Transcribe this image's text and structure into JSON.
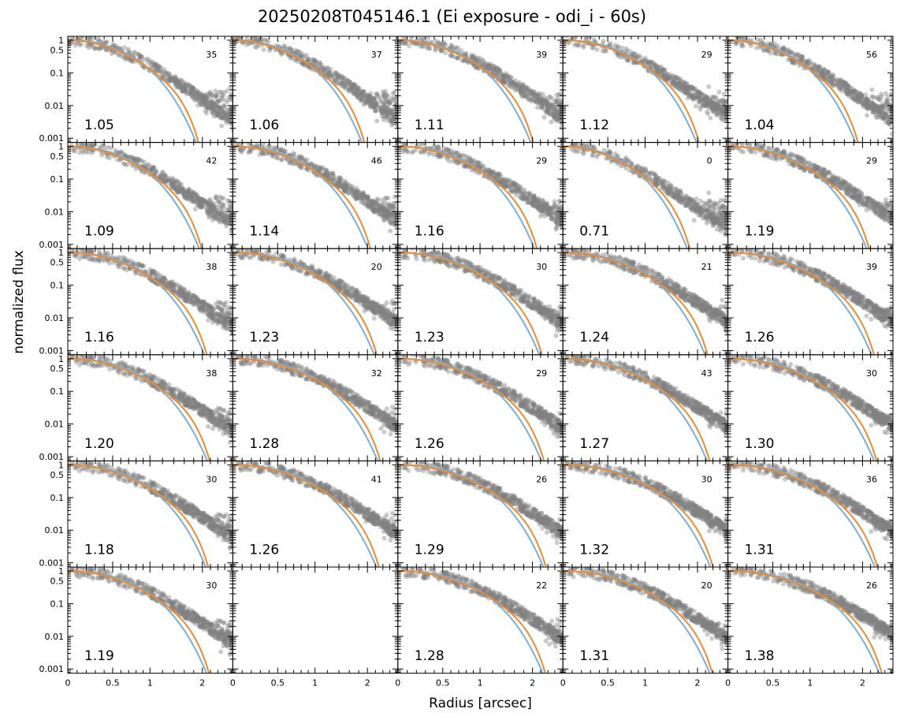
{
  "figure": {
    "title": "20250208T045146.1 (Ei exposure - odi_i - 60s)",
    "xlabel": "Radius [arcsec]",
    "ylabel": "normalized flux"
  },
  "chart_data": {
    "type": "scatter",
    "layout": {
      "rows": 6,
      "cols": 5
    },
    "x_scale": "asinh-like (labeled ticks 0, 0.5, 1, 2)",
    "y_scale": "log",
    "xticks": [
      "0",
      "0.5",
      "1",
      "2"
    ],
    "yticks": [
      "1",
      "0.5",
      "0.1",
      "0.01",
      "0.001"
    ],
    "colors": {
      "points": "#808080",
      "fit_blue": "#7aaed6",
      "fit_orange": "#ee8a2e"
    },
    "panels": [
      {
        "fwhm": "1.05",
        "count": "35",
        "empty": false
      },
      {
        "fwhm": "1.06",
        "count": "37",
        "empty": false
      },
      {
        "fwhm": "1.11",
        "count": "39",
        "empty": false
      },
      {
        "fwhm": "1.12",
        "count": "29",
        "empty": false
      },
      {
        "fwhm": "1.04",
        "count": "56",
        "empty": false
      },
      {
        "fwhm": "1.09",
        "count": "42",
        "empty": false
      },
      {
        "fwhm": "1.14",
        "count": "46",
        "empty": false
      },
      {
        "fwhm": "1.16",
        "count": "29",
        "empty": false
      },
      {
        "fwhm": "0.71",
        "count": "0",
        "empty": false
      },
      {
        "fwhm": "1.19",
        "count": "29",
        "empty": false
      },
      {
        "fwhm": "1.16",
        "count": "38",
        "empty": false
      },
      {
        "fwhm": "1.23",
        "count": "20",
        "empty": false
      },
      {
        "fwhm": "1.23",
        "count": "30",
        "empty": false
      },
      {
        "fwhm": "1.24",
        "count": "21",
        "empty": false
      },
      {
        "fwhm": "1.26",
        "count": "39",
        "empty": false
      },
      {
        "fwhm": "1.20",
        "count": "38",
        "empty": false
      },
      {
        "fwhm": "1.28",
        "count": "32",
        "empty": false
      },
      {
        "fwhm": "1.26",
        "count": "29",
        "empty": false
      },
      {
        "fwhm": "1.27",
        "count": "43",
        "empty": false
      },
      {
        "fwhm": "1.30",
        "count": "30",
        "empty": false
      },
      {
        "fwhm": "1.18",
        "count": "30",
        "empty": false
      },
      {
        "fwhm": "1.26",
        "count": "41",
        "empty": false
      },
      {
        "fwhm": "1.29",
        "count": "26",
        "empty": false
      },
      {
        "fwhm": "1.32",
        "count": "30",
        "empty": false
      },
      {
        "fwhm": "1.31",
        "count": "36",
        "empty": false
      },
      {
        "fwhm": "1.19",
        "count": "30",
        "empty": false
      },
      {
        "fwhm": "",
        "count": "",
        "empty": true
      },
      {
        "fwhm": "1.28",
        "count": "22",
        "empty": false
      },
      {
        "fwhm": "1.31",
        "count": "20",
        "empty": false
      },
      {
        "fwhm": "1.38",
        "count": "26",
        "empty": false
      }
    ]
  }
}
